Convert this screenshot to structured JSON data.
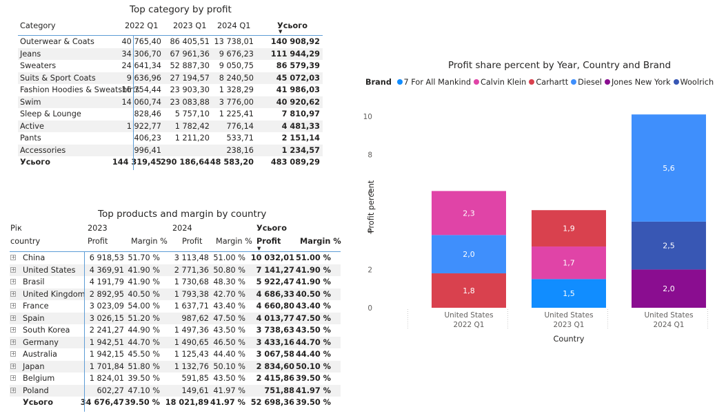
{
  "table1": {
    "title": "Top category by profit",
    "columns": [
      "Category",
      "2022 Q1",
      "2023 Q1",
      "2024 Q1",
      "Усього"
    ],
    "rows": [
      [
        "Outerwear & Coats",
        "40 765,40",
        "86 405,51",
        "13 738,01",
        "140 908,92"
      ],
      [
        "Jeans",
        "34 306,70",
        "67 961,36",
        "9 676,23",
        "111 944,29"
      ],
      [
        "Sweaters",
        "24 641,34",
        "52 887,30",
        "9 050,75",
        "86 579,39"
      ],
      [
        "Suits & Sport Coats",
        "9 636,96",
        "27 194,57",
        "8 240,50",
        "45 072,03"
      ],
      [
        "Fashion Hoodies & Sweatshirts",
        "16 754,44",
        "23 903,30",
        "1 328,29",
        "41 986,03"
      ],
      [
        "Swim",
        "14 060,74",
        "23 083,88",
        "3 776,00",
        "40 920,62"
      ],
      [
        "Sleep & Lounge",
        "828,46",
        "5 757,10",
        "1 225,41",
        "7 810,97"
      ],
      [
        "Active",
        "1 922,77",
        "1 782,42",
        "776,14",
        "4 481,33"
      ],
      [
        "Pants",
        "406,23",
        "1 211,20",
        "533,71",
        "2 151,14"
      ],
      [
        "Accessories",
        "996,41",
        "",
        "238,16",
        "1 234,57"
      ]
    ],
    "total": [
      "Усього",
      "144 319,45",
      "290 186,64",
      "48 583,20",
      "483 089,29"
    ]
  },
  "table2": {
    "title": "Top products and margin by country",
    "row_header_1": "Рік",
    "row_header_2": "country",
    "year_2023": "2023",
    "year_2024": "2024",
    "total_label": "Усього",
    "profit_label": "Profit",
    "margin_label": "Margin %",
    "rows": [
      [
        "China",
        "6 918,53",
        "51.70 %",
        "3 113,48",
        "51.00 %",
        "10 032,01",
        "51.00 %"
      ],
      [
        "United States",
        "4 369,91",
        "41.90 %",
        "2 771,36",
        "50.80 %",
        "7 141,27",
        "41.90 %"
      ],
      [
        "Brasil",
        "4 191,79",
        "41.90 %",
        "1 730,68",
        "48.30 %",
        "5 922,47",
        "41.90 %"
      ],
      [
        "United Kingdom",
        "2 892,95",
        "40.50 %",
        "1 793,38",
        "42.70 %",
        "4 686,33",
        "40.50 %"
      ],
      [
        "France",
        "3 023,09",
        "54.00 %",
        "1 637,71",
        "43.40 %",
        "4 660,80",
        "43.40 %"
      ],
      [
        "Spain",
        "3 026,15",
        "51.20 %",
        "987,62",
        "47.50 %",
        "4 013,77",
        "47.50 %"
      ],
      [
        "South Korea",
        "2 241,27",
        "44.90 %",
        "1 497,36",
        "43.50 %",
        "3 738,63",
        "43.50 %"
      ],
      [
        "Germany",
        "1 942,51",
        "44.70 %",
        "1 490,65",
        "46.50 %",
        "3 433,16",
        "44.70 %"
      ],
      [
        "Australia",
        "1 942,15",
        "45.50 %",
        "1 125,43",
        "44.40 %",
        "3 067,58",
        "44.40 %"
      ],
      [
        "Japan",
        "1 701,84",
        "51.80 %",
        "1 132,76",
        "50.10 %",
        "2 834,60",
        "50.10 %"
      ],
      [
        "Belgium",
        "1 824,01",
        "39.50 %",
        "591,85",
        "43.50 %",
        "2 415,86",
        "39.50 %"
      ],
      [
        "Poland",
        "602,27",
        "47.10 %",
        "149,61",
        "41.97 %",
        "751,88",
        "41.97 %"
      ]
    ],
    "total": [
      "Усього",
      "34 676,47",
      "39.50 %",
      "18 021,89",
      "41.97 %",
      "52 698,36",
      "39.50 %"
    ]
  },
  "chart_data": {
    "type": "bar",
    "stacked": true,
    "title": "Profit share percent by Year, Country and Brand",
    "xlabel": "Country",
    "ylabel": "Profit percent",
    "ylim": [
      0,
      10
    ],
    "yticks": [
      0,
      2,
      4,
      6,
      8,
      10
    ],
    "legend_title": "Brand",
    "legend_position": "top-left",
    "categories": [
      [
        "United States",
        "2022 Q1"
      ],
      [
        "United States",
        "2023 Q1"
      ],
      [
        "United States",
        "2024 Q1"
      ]
    ],
    "series": [
      {
        "name": "7 For All Mankind",
        "color": "#118dff",
        "values": [
          0,
          1.5,
          0
        ],
        "labels": [
          "",
          "1,5",
          ""
        ]
      },
      {
        "name": "Calvin Klein",
        "color": "#e044a7",
        "values": [
          2.3,
          1.7,
          0
        ],
        "labels": [
          "2,3",
          "1,7",
          ""
        ]
      },
      {
        "name": "Carhartt",
        "color": "#d9414e",
        "values": [
          1.8,
          1.9,
          0
        ],
        "labels": [
          "1,8",
          "1,9",
          ""
        ]
      },
      {
        "name": "Diesel",
        "color": "#3f8ffc",
        "values": [
          2.0,
          0,
          5.6
        ],
        "labels": [
          "2,0",
          "",
          "5,6"
        ]
      },
      {
        "name": "Jones New York",
        "color": "#8a0d90",
        "values": [
          0,
          0,
          2.0
        ],
        "labels": [
          "",
          "",
          "2,0"
        ]
      },
      {
        "name": "Woolrich",
        "color": "#3857b4",
        "values": [
          0,
          0,
          2.5
        ],
        "labels": [
          "",
          "",
          "2,5"
        ]
      }
    ],
    "stack_order": [
      [
        "Carhartt",
        "Diesel",
        "Calvin Klein"
      ],
      [
        "7 For All Mankind",
        "Calvin Klein",
        "Carhartt"
      ],
      [
        "Jones New York",
        "Woolrich",
        "Diesel"
      ]
    ],
    "grid": false
  }
}
